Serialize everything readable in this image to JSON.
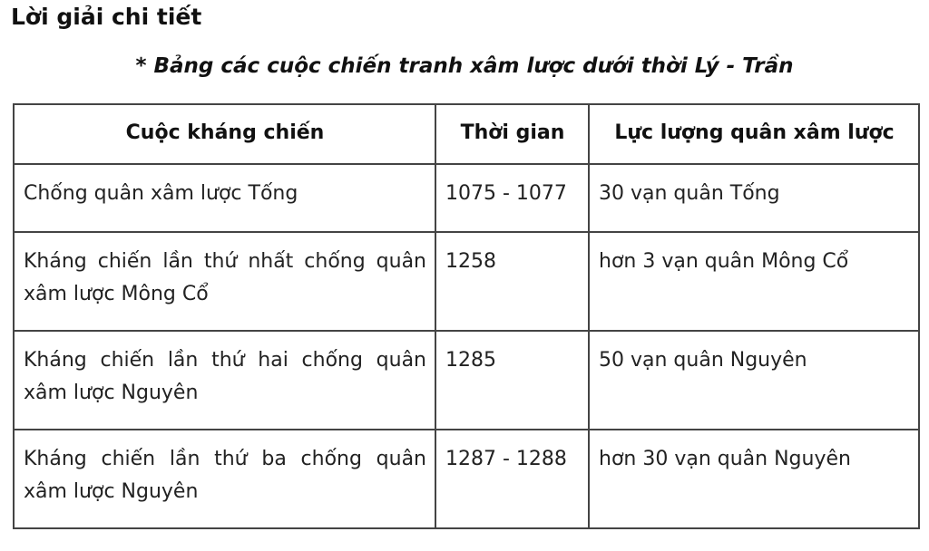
{
  "heading": "Lời giải chi tiết",
  "caption": "* Bảng các cuộc chiến tranh xâm lược dưới thời Lý - Trần",
  "table": {
    "headers": [
      "Cuộc kháng chiến",
      "Thời gian",
      "Lực lượng quân xâm lược"
    ],
    "rows": [
      [
        "Chống quân xâm lược Tống",
        "1075 - 1077",
        "30 vạn quân Tống"
      ],
      [
        "Kháng chiến lần thứ nhất chống quân xâm lược Mông Cổ",
        "1258",
        "hơn 3 vạn quân Mông Cổ"
      ],
      [
        "Kháng chiến lần thứ hai chống quân xâm lược Nguyên",
        "1285",
        "50 vạn quân Nguyên"
      ],
      [
        "Kháng chiến lần thứ ba chống quân xâm lược Nguyên",
        "1287 - 1288",
        "hơn 30 vạn quân Nguyên"
      ]
    ]
  }
}
